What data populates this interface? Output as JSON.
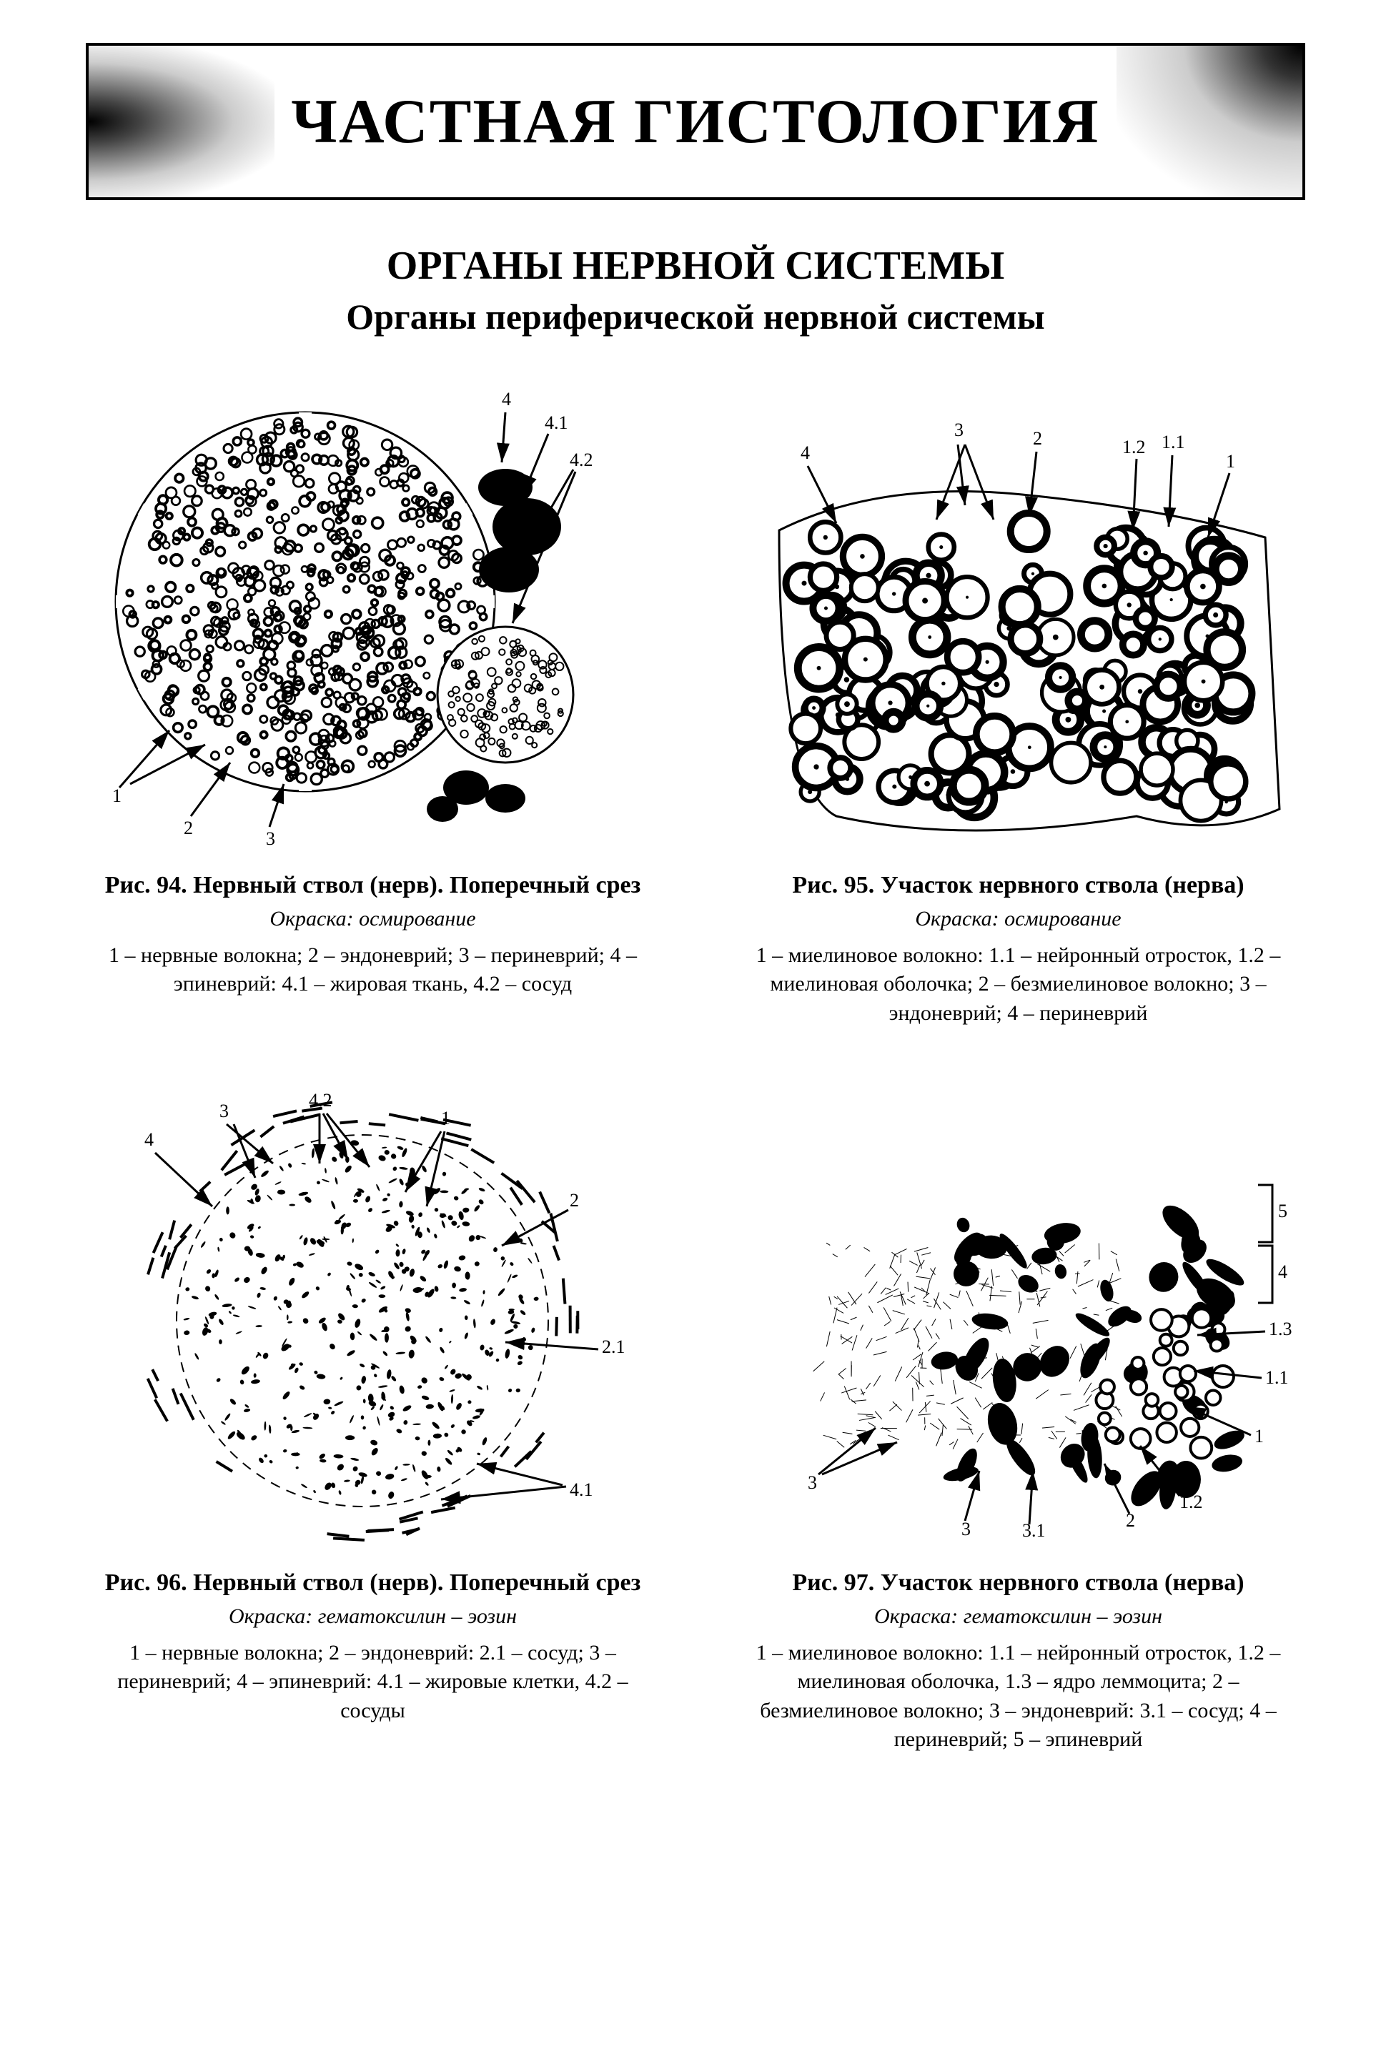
{
  "banner": {
    "title": "ЧАСТНАЯ ГИСТОЛОГИЯ",
    "border_color": "#000000",
    "title_fontsize": 88,
    "title_weight": 700
  },
  "section": {
    "heading1": "ОРГАНЫ НЕРВНОЙ СИСТЕМЫ",
    "heading2": "Органы периферической нервной системы",
    "h1_fontsize": 56,
    "h2_fontsize": 50
  },
  "page": {
    "background": "#ffffff",
    "text_color": "#000000"
  },
  "figures": [
    {
      "id": "fig94",
      "title": "Рис. 94. Нервный ствол (нерв). Поперечный срез",
      "stain": "Окраска: осмирование",
      "legend": "1 – нервные волокна; 2 – эндоневрий; 3 – периневрий; 4 – эпиневрий: 4.1 – жировая ткань, 4.2 – сосуд",
      "labels": [
        "1",
        "2",
        "3",
        "4",
        "4.1",
        "4.2"
      ],
      "diagram": {
        "type": "histology-cross-section",
        "main_circle_radius": 265,
        "satellite_circle_radius": 95,
        "fiber_ring_stroke": "#000000",
        "septa_stroke": "#ffffff",
        "adipose_fill": "#000000",
        "label_fontsize": 26,
        "arrow_stroke": "#000000"
      }
    },
    {
      "id": "fig95",
      "title": "Рис. 95. Участок нервного ствола (нерва)",
      "stain": "Окраска: осмирование",
      "legend": "1 – миелиновое волокно: 1.1 – нейронный отросток, 1.2 – миелиновая оболочка; 2 – безмиелиновое волокно; 3 – эндоневрий; 4 – периневрий",
      "labels": [
        "1",
        "1.1",
        "1.2",
        "2",
        "3",
        "4"
      ],
      "diagram": {
        "type": "histology-fragment",
        "ring_stroke": "#000000",
        "ring_inner_fill": "#ffffff",
        "label_fontsize": 26,
        "arrow_stroke": "#000000"
      }
    },
    {
      "id": "fig96",
      "title": "Рис. 96. Нервный ствол (нерв).\nПоперечный срез",
      "stain": "Окраска: гематоксилин – эозин",
      "legend": "1 – нервные волокна; 2 – эндоневрий: 2.1 – сосуд; 3 – периневрий; 4 – эпиневрий: 4.1 – жировые клетки, 4.2 – сосуды",
      "labels": [
        "1",
        "2",
        "2.1",
        "3",
        "4",
        "4.1",
        "4.2"
      ],
      "diagram": {
        "type": "histology-HE-cross",
        "outline_stroke": "#000000",
        "speck_fill": "#000000",
        "label_fontsize": 26,
        "arrow_stroke": "#000000"
      }
    },
    {
      "id": "fig97",
      "title": "Рис. 97. Участок нервного ствола (нерва)",
      "stain": "Окраска: гематоксилин – эозин",
      "legend": "1 – миелиновое волокно: 1.1 – нейронный отросток, 1.2 – миелиновая оболочка, 1.3 – ядро леммоцита; 2 – безмиелиновое волокно; 3 – эндоневрий: 3.1 – сосуд; 4 – периневрий; 5 – эпиневрий",
      "labels": [
        "1",
        "1.1",
        "1.2",
        "1.3",
        "2",
        "3",
        "3.1",
        "4",
        "5"
      ],
      "diagram": {
        "type": "histology-HE-fragment",
        "blot_fill": "#000000",
        "hatch_stroke": "#000000",
        "label_fontsize": 26,
        "arrow_stroke": "#000000"
      }
    }
  ]
}
